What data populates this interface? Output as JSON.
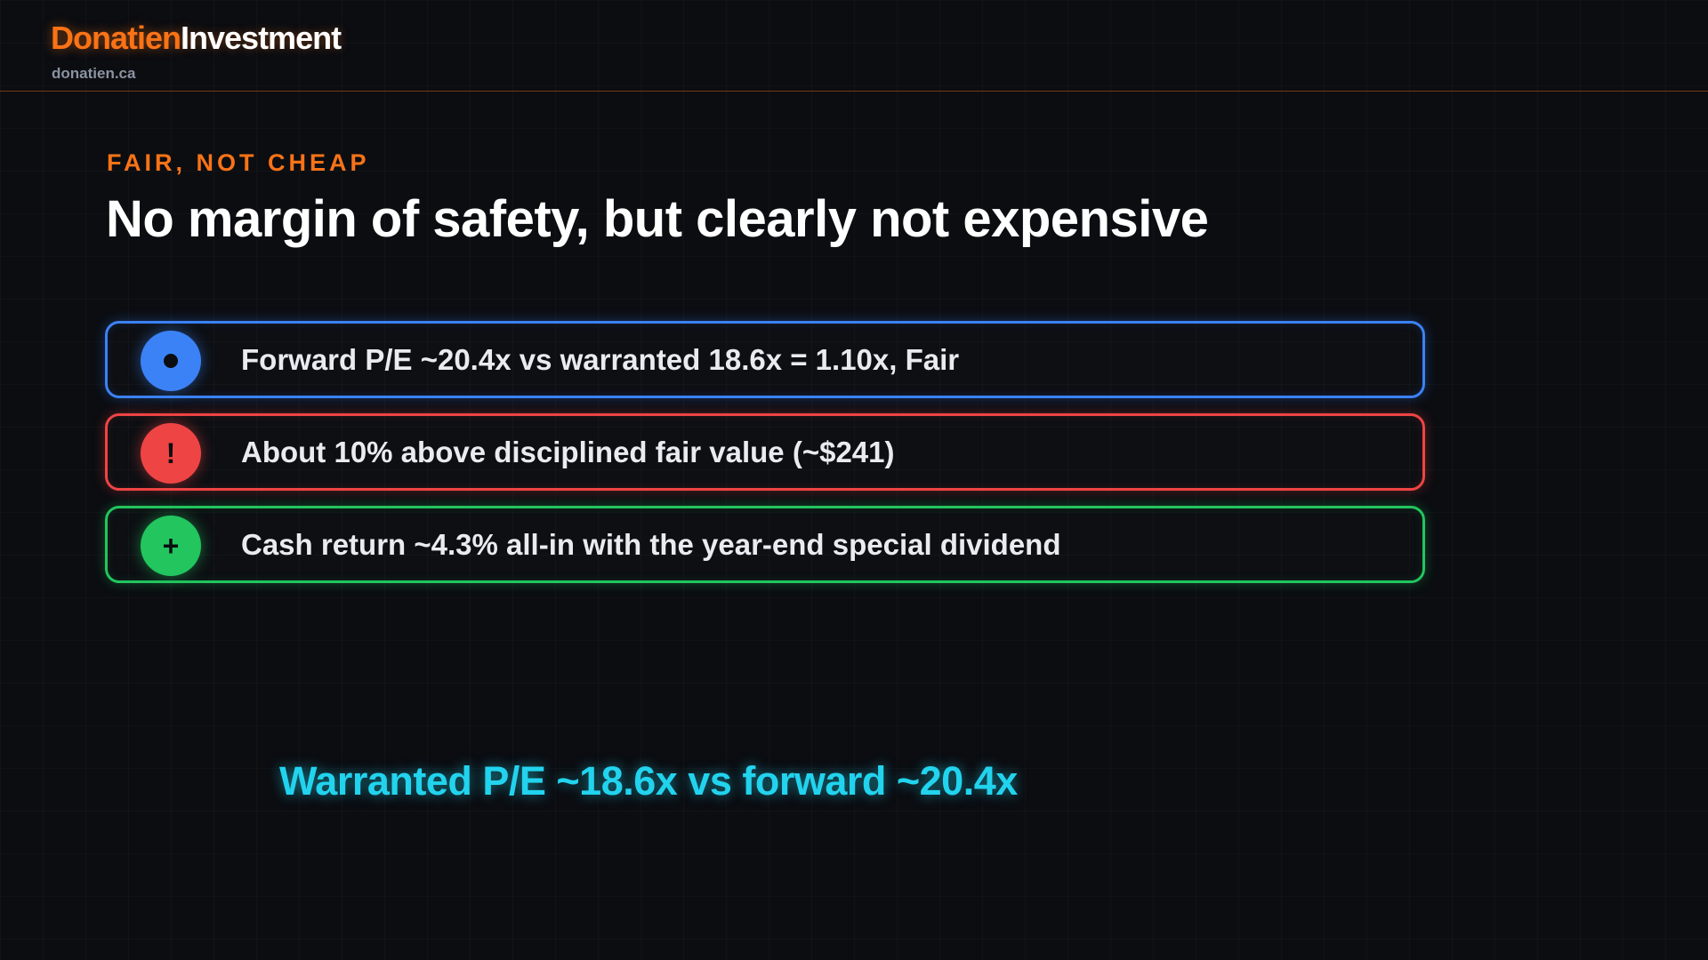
{
  "header": {
    "brand_primary": "Donatien",
    "brand_secondary": "Investment",
    "domain": "donatien.ca"
  },
  "eyebrow": "FAIR, NOT CHEAP",
  "title": "No margin of safety, but clearly not expensive",
  "points": [
    {
      "text": "Forward P/E ~20.4x vs warranted 18.6x = 1.10x, Fair",
      "icon": "dot-icon",
      "glyph": "",
      "color": "#3b82f6"
    },
    {
      "text": "About 10% above disciplined fair value (~$241)",
      "icon": "exclamation-icon",
      "glyph": "!",
      "color": "#ef4444"
    },
    {
      "text": "Cash return ~4.3% all-in with the year-end special dividend",
      "icon": "plus-icon",
      "glyph": "+",
      "color": "#22c55e"
    }
  ],
  "footer_note": {
    "text": "Warranted P/E ~18.6x vs forward ~20.4x",
    "color": "#22d3ee"
  },
  "colors": {
    "accent": "#f97316",
    "background": "#0b0d11"
  }
}
